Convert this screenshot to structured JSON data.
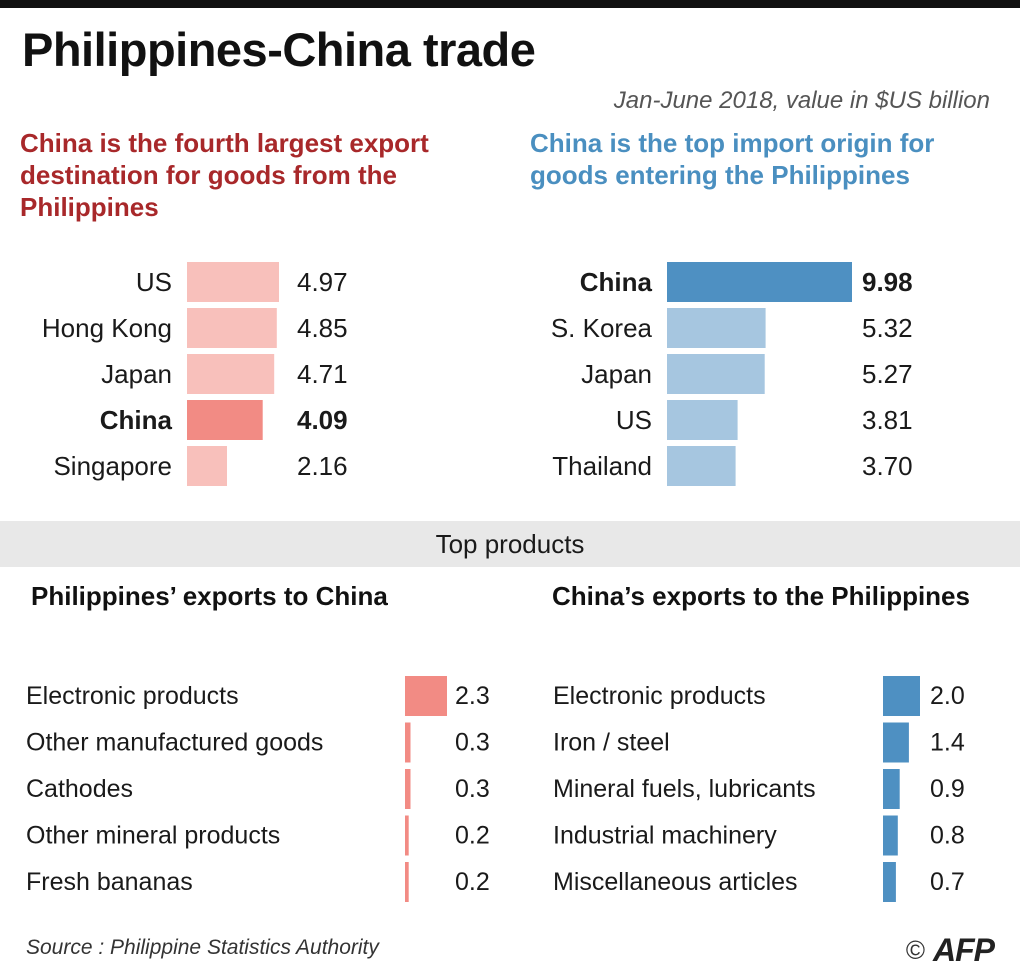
{
  "title": "Philippines-China trade",
  "subtitle": "Jan-June 2018, value in $US billion",
  "headings": {
    "exports": "China is the fourth largest export destination for goods from the Philippines",
    "imports": "China is the top import origin for goods entering the Philippines"
  },
  "band_label": "Top products",
  "subheadings": {
    "ph_exports": "Philippines’ exports to China",
    "cn_exports": "China’s exports to the Philippines"
  },
  "source": "Source : Philippine Statistics Authority",
  "credit": {
    "copyright": "©",
    "agency": "AFP"
  },
  "colors": {
    "red_light": "#f8c0bb",
    "red_strong": "#f28b84",
    "blue_light": "#a6c6e0",
    "blue_strong": "#4e90c2",
    "heading_red": "#a8282a",
    "heading_blue": "#4a8fc0"
  },
  "chart_data": [
    {
      "id": "export-destinations",
      "type": "bar",
      "orientation": "horizontal",
      "categories": [
        "US",
        "Hong Kong",
        "Japan",
        "China",
        "Singapore"
      ],
      "values": [
        4.97,
        4.85,
        4.71,
        4.09,
        2.16
      ],
      "value_labels": [
        "4.97",
        "4.85",
        "4.71",
        "4.09",
        "2.16"
      ],
      "highlight": "China",
      "color": "#f8c0bb",
      "highlight_color": "#f28b84",
      "xlim": [
        0,
        4.97
      ]
    },
    {
      "id": "import-origins",
      "type": "bar",
      "orientation": "horizontal",
      "categories": [
        "China",
        "S. Korea",
        "Japan",
        "US",
        "Thailand"
      ],
      "values": [
        9.98,
        5.32,
        5.27,
        3.81,
        3.7
      ],
      "value_labels": [
        "9.98",
        "5.32",
        "5.27",
        "3.81",
        "3.70"
      ],
      "highlight": "China",
      "color": "#a6c6e0",
      "highlight_color": "#4e90c2",
      "xlim": [
        0,
        9.98
      ]
    },
    {
      "id": "ph-exports-to-china",
      "type": "bar",
      "orientation": "horizontal",
      "categories": [
        "Electronic products",
        "Other manufactured goods",
        "Cathodes",
        "Other mineral products",
        "Fresh bananas"
      ],
      "values": [
        2.3,
        0.3,
        0.3,
        0.2,
        0.2
      ],
      "value_labels": [
        "2.3",
        "0.3",
        "0.3",
        "0.2",
        "0.2"
      ],
      "color": "#f28b84",
      "xlim": [
        0,
        2.3
      ]
    },
    {
      "id": "china-exports-to-ph",
      "type": "bar",
      "orientation": "horizontal",
      "categories": [
        "Electronic products",
        "Iron / steel",
        "Mineral fuels, lubricants",
        "Industrial machinery",
        "Miscellaneous articles"
      ],
      "values": [
        2.0,
        1.4,
        0.9,
        0.8,
        0.7
      ],
      "value_labels": [
        "2.0",
        "1.4",
        "0.9",
        "0.8",
        "0.7"
      ],
      "color": "#4e90c2",
      "xlim": [
        0,
        2.0
      ]
    }
  ]
}
